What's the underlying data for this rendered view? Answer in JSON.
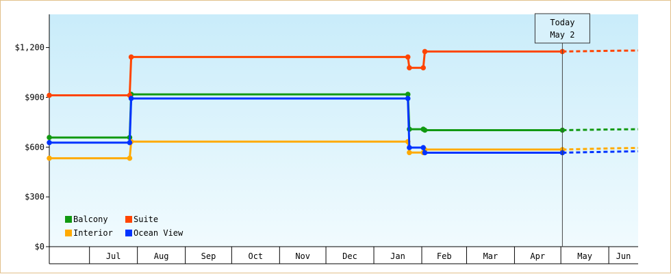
{
  "chart_data": {
    "type": "line",
    "title": "",
    "xlabel": "",
    "ylabel": "",
    "ylim": [
      0,
      1400
    ],
    "y_ticks": [
      {
        "value": 0,
        "label": "$0"
      },
      {
        "value": 300,
        "label": "$300"
      },
      {
        "value": 600,
        "label": "$600"
      },
      {
        "value": 900,
        "label": "$900"
      },
      {
        "value": 1200,
        "label": "$1,200"
      }
    ],
    "x_range": [
      "2023-06-05",
      "2024-06-20"
    ],
    "x_months": [
      {
        "label": "Jul",
        "start": "2023-07-01"
      },
      {
        "label": "Aug",
        "start": "2023-08-01"
      },
      {
        "label": "Sep",
        "start": "2023-09-01"
      },
      {
        "label": "Oct",
        "start": "2023-10-01"
      },
      {
        "label": "Nov",
        "start": "2023-11-01"
      },
      {
        "label": "Dec",
        "start": "2023-12-01"
      },
      {
        "label": "Jan",
        "start": "2024-01-01"
      },
      {
        "label": "Feb",
        "start": "2024-02-01"
      },
      {
        "label": "Mar",
        "start": "2024-03-01"
      },
      {
        "label": "Apr",
        "start": "2024-04-01"
      },
      {
        "label": "May",
        "start": "2024-05-01"
      },
      {
        "label": "Jun",
        "start": "2024-06-01"
      }
    ],
    "today": {
      "line1": "Today",
      "line2": "May 2",
      "date": "2024-05-02"
    },
    "legend_position": "bottom-left",
    "series": [
      {
        "name": "Balcony",
        "color": "#119911",
        "points": [
          [
            "2023-06-05",
            658
          ],
          [
            "2023-07-27",
            658
          ],
          [
            "2023-07-28",
            918
          ],
          [
            "2024-01-23",
            918
          ],
          [
            "2024-01-24",
            708
          ],
          [
            "2024-02-02",
            708
          ],
          [
            "2024-02-03",
            702
          ],
          [
            "2024-05-02",
            702
          ]
        ],
        "projection": [
          [
            "2024-05-02",
            702
          ],
          [
            "2024-06-01",
            706
          ],
          [
            "2024-06-20",
            708
          ]
        ]
      },
      {
        "name": "Suite",
        "color": "#ff4400",
        "points": [
          [
            "2023-06-05",
            912
          ],
          [
            "2023-07-27",
            912
          ],
          [
            "2023-07-28",
            1143
          ],
          [
            "2024-01-23",
            1143
          ],
          [
            "2024-01-24",
            1078
          ],
          [
            "2024-02-02",
            1078
          ],
          [
            "2024-02-03",
            1176
          ],
          [
            "2024-05-02",
            1176
          ]
        ],
        "projection": [
          [
            "2024-05-02",
            1176
          ],
          [
            "2024-06-01",
            1180
          ],
          [
            "2024-06-20",
            1182
          ]
        ]
      },
      {
        "name": "Interior",
        "color": "#ffaa00",
        "points": [
          [
            "2023-06-05",
            533
          ],
          [
            "2023-07-27",
            533
          ],
          [
            "2023-07-28",
            633
          ],
          [
            "2024-01-23",
            633
          ],
          [
            "2024-01-24",
            567
          ],
          [
            "2024-02-02",
            567
          ],
          [
            "2024-02-03",
            585
          ],
          [
            "2024-05-02",
            585
          ]
        ],
        "projection": [
          [
            "2024-05-02",
            585
          ],
          [
            "2024-06-01",
            592
          ],
          [
            "2024-06-20",
            595
          ]
        ]
      },
      {
        "name": "Ocean View",
        "color": "#0033ff",
        "points": [
          [
            "2023-06-05",
            627
          ],
          [
            "2023-07-27",
            627
          ],
          [
            "2023-07-28",
            893
          ],
          [
            "2024-01-23",
            893
          ],
          [
            "2024-01-24",
            597
          ],
          [
            "2024-02-02",
            597
          ],
          [
            "2024-02-03",
            566
          ],
          [
            "2024-05-02",
            566
          ]
        ],
        "projection": [
          [
            "2024-05-02",
            566
          ],
          [
            "2024-06-01",
            572
          ],
          [
            "2024-06-20",
            575
          ]
        ]
      }
    ]
  }
}
